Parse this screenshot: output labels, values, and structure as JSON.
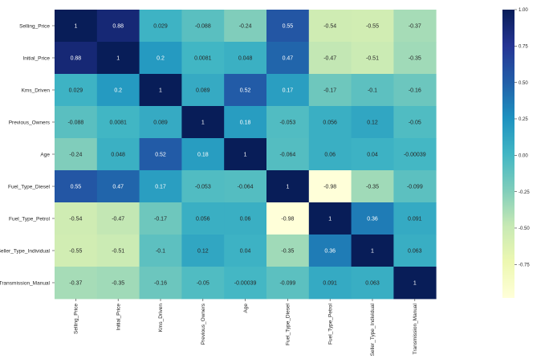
{
  "chart_data": {
    "type": "heatmap",
    "title": "",
    "xlabel": "",
    "ylabel": "",
    "variables": [
      "Selling_Price",
      "Initial_Price",
      "Kms_Driven",
      "Previous_Owners",
      "Age",
      "Fuel_Type_Diesel",
      "Fuel_Type_Petrol",
      "Seller_Type_Individual",
      "Transmission_Manual"
    ],
    "values": [
      [
        1,
        0.88,
        0.029,
        -0.088,
        -0.24,
        0.55,
        -0.54,
        -0.55,
        -0.37
      ],
      [
        0.88,
        1,
        0.2,
        0.0081,
        0.048,
        0.47,
        -0.47,
        -0.51,
        -0.35
      ],
      [
        0.029,
        0.2,
        1,
        0.089,
        0.52,
        0.17,
        -0.17,
        -0.1,
        -0.16
      ],
      [
        -0.088,
        0.0081,
        0.089,
        1,
        0.18,
        -0.053,
        0.056,
        0.12,
        -0.05
      ],
      [
        -0.24,
        0.048,
        0.52,
        0.18,
        1,
        -0.064,
        0.06,
        0.04,
        -0.00039
      ],
      [
        0.55,
        0.47,
        0.17,
        -0.053,
        -0.064,
        1,
        -0.98,
        -0.35,
        -0.099
      ],
      [
        -0.54,
        -0.47,
        -0.17,
        0.056,
        0.06,
        -0.98,
        1,
        0.36,
        0.091
      ],
      [
        -0.55,
        -0.51,
        -0.1,
        0.12,
        0.04,
        -0.35,
        0.36,
        1,
        0.063
      ],
      [
        -0.37,
        -0.35,
        -0.16,
        -0.05,
        -0.00039,
        -0.099,
        0.091,
        0.063,
        1
      ]
    ],
    "labels": [
      [
        "1",
        "0.88",
        "0.029",
        "-0.088",
        "-0.24",
        "0.55",
        "-0.54",
        "-0.55",
        "-0.37"
      ],
      [
        "0.88",
        "1",
        "0.2",
        "0.0081",
        "0.048",
        "0.47",
        "-0.47",
        "-0.51",
        "-0.35"
      ],
      [
        "0.029",
        "0.2",
        "1",
        "0.089",
        "0.52",
        "0.17",
        "-0.17",
        "-0.1",
        "-0.16"
      ],
      [
        "-0.088",
        "0.0081",
        "0.089",
        "1",
        "0.18",
        "-0.053",
        "0.056",
        "0.12",
        "-0.05"
      ],
      [
        "-0.24",
        "0.048",
        "0.52",
        "0.18",
        "1",
        "-0.064",
        "0.06",
        "0.04",
        "-0.00039"
      ],
      [
        "0.55",
        "0.47",
        "0.17",
        "-0.053",
        "-0.064",
        "1",
        "-0.98",
        "-0.35",
        "-0.099"
      ],
      [
        "-0.54",
        "-0.47",
        "-0.17",
        "0.056",
        "0.06",
        "-0.98",
        "1",
        "0.36",
        "0.091"
      ],
      [
        "-0.55",
        "-0.51",
        "-0.1",
        "0.12",
        "0.04",
        "-0.35",
        "0.36",
        "1",
        "0.063"
      ],
      [
        "-0.37",
        "-0.35",
        "-0.16",
        "-0.05",
        "-0.00039",
        "-0.099",
        "0.091",
        "0.063",
        "1"
      ]
    ],
    "colormap": "YlGnBu",
    "colormap_stops": [
      "#ffffd9",
      "#edf8b1",
      "#c7e9b4",
      "#7fcdbb",
      "#41b6c4",
      "#1d91c0",
      "#225ea8",
      "#253494",
      "#081d58"
    ],
    "vmin": -0.98,
    "vmax": 1.0,
    "colorbar_ticks": [
      1.0,
      0.75,
      0.5,
      0.25,
      0.0,
      -0.25,
      -0.5,
      -0.75
    ],
    "colorbar_tick_labels": [
      "1.00",
      "0.75",
      "0.50",
      "0.25",
      "0.00",
      "-0.25",
      "-0.50",
      "-0.75"
    ],
    "grid": false,
    "legend": "right-colorbar"
  }
}
